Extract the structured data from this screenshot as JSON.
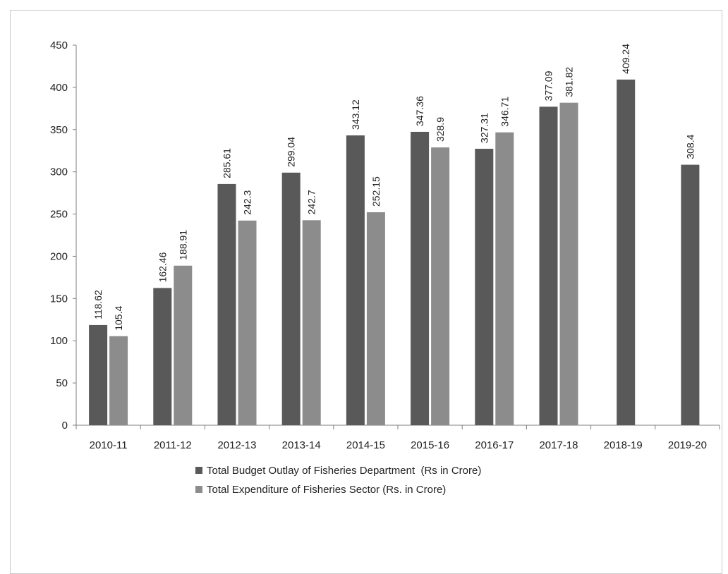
{
  "chart_data": {
    "type": "bar",
    "title": "",
    "xlabel": "",
    "ylabel": "",
    "ylim": [
      0,
      450
    ],
    "yticks": [
      0,
      50,
      100,
      150,
      200,
      250,
      300,
      350,
      400,
      450
    ],
    "grid": false,
    "legend_position": "bottom",
    "categories": [
      "2010-11",
      "2011-12",
      "2012-13",
      "2013-14",
      "2014-15",
      "2015-16",
      "2016-17",
      "2017-18",
      "2018-19",
      "2019-20"
    ],
    "series": [
      {
        "name": "Total Budget Outlay of Fisheries Department  (Rs in Crore)",
        "color": "#595959",
        "values": [
          118.62,
          162.46,
          285.61,
          299.04,
          343.12,
          347.36,
          327.31,
          377.09,
          409.24,
          308.4
        ]
      },
      {
        "name": "Total Expenditure of Fisheries Sector (Rs. in Crore)",
        "color": "#8c8c8c",
        "values": [
          105.4,
          188.91,
          242.3,
          242.7,
          252.15,
          328.9,
          346.71,
          381.82,
          null,
          null
        ]
      }
    ]
  }
}
